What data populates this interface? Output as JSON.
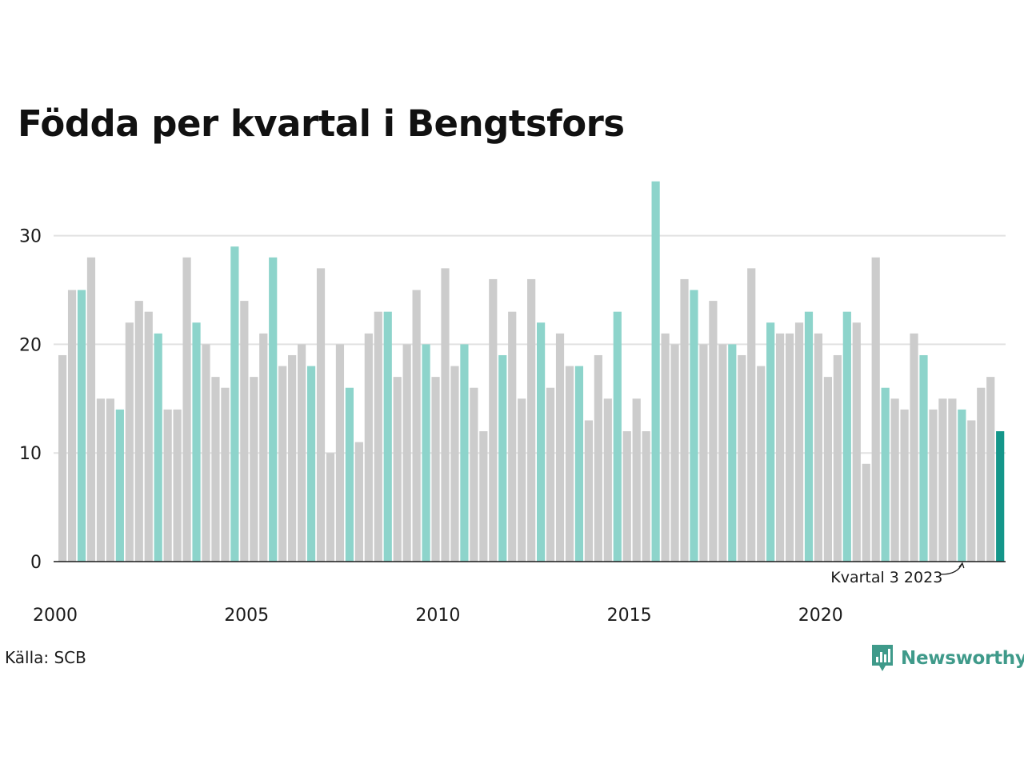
{
  "title": "Födda per kvartal i Bengtsfors",
  "source": "Källa: SCB",
  "brand": {
    "name": "Newsworthy",
    "icon": "newsworthy-logo-icon",
    "color": "#3f9a8a"
  },
  "colors": {
    "default_bar": "#cccccc",
    "same_quarter_bar": "#8dd4cb",
    "latest_bar": "#14968a",
    "grid": "#e2e2e2",
    "axis": "#1a1a1a"
  },
  "chart_data": {
    "type": "bar",
    "title": "Födda per kvartal i Bengtsfors",
    "xlabel": "",
    "ylabel": "",
    "ylim": [
      0,
      35
    ],
    "yticks": [
      0,
      10,
      20,
      30
    ],
    "xtick_labels": [
      "2000",
      "2005",
      "2010",
      "2015",
      "2020"
    ],
    "grid": true,
    "first_quarter": "2000 Q1",
    "values": [
      19,
      25,
      25,
      28,
      15,
      15,
      14,
      22,
      24,
      23,
      21,
      14,
      14,
      28,
      22,
      20,
      17,
      16,
      29,
      24,
      17,
      21,
      28,
      18,
      19,
      20,
      18,
      27,
      10,
      20,
      16,
      11,
      21,
      23,
      23,
      17,
      20,
      25,
      20,
      17,
      27,
      18,
      20,
      16,
      12,
      26,
      19,
      23,
      15,
      26,
      22,
      16,
      21,
      18,
      18,
      13,
      19,
      15,
      23,
      12,
      15,
      12,
      35,
      21,
      20,
      26,
      25,
      20,
      24,
      20,
      20,
      19,
      27,
      18,
      22,
      21,
      21,
      22,
      23,
      21,
      17,
      19,
      23,
      22,
      9,
      28,
      16,
      15,
      14,
      21,
      19,
      14,
      15,
      15,
      14,
      13,
      16,
      17,
      12
    ],
    "highlight_quarter": 3,
    "annotation": "Kvartal 3 2023"
  }
}
